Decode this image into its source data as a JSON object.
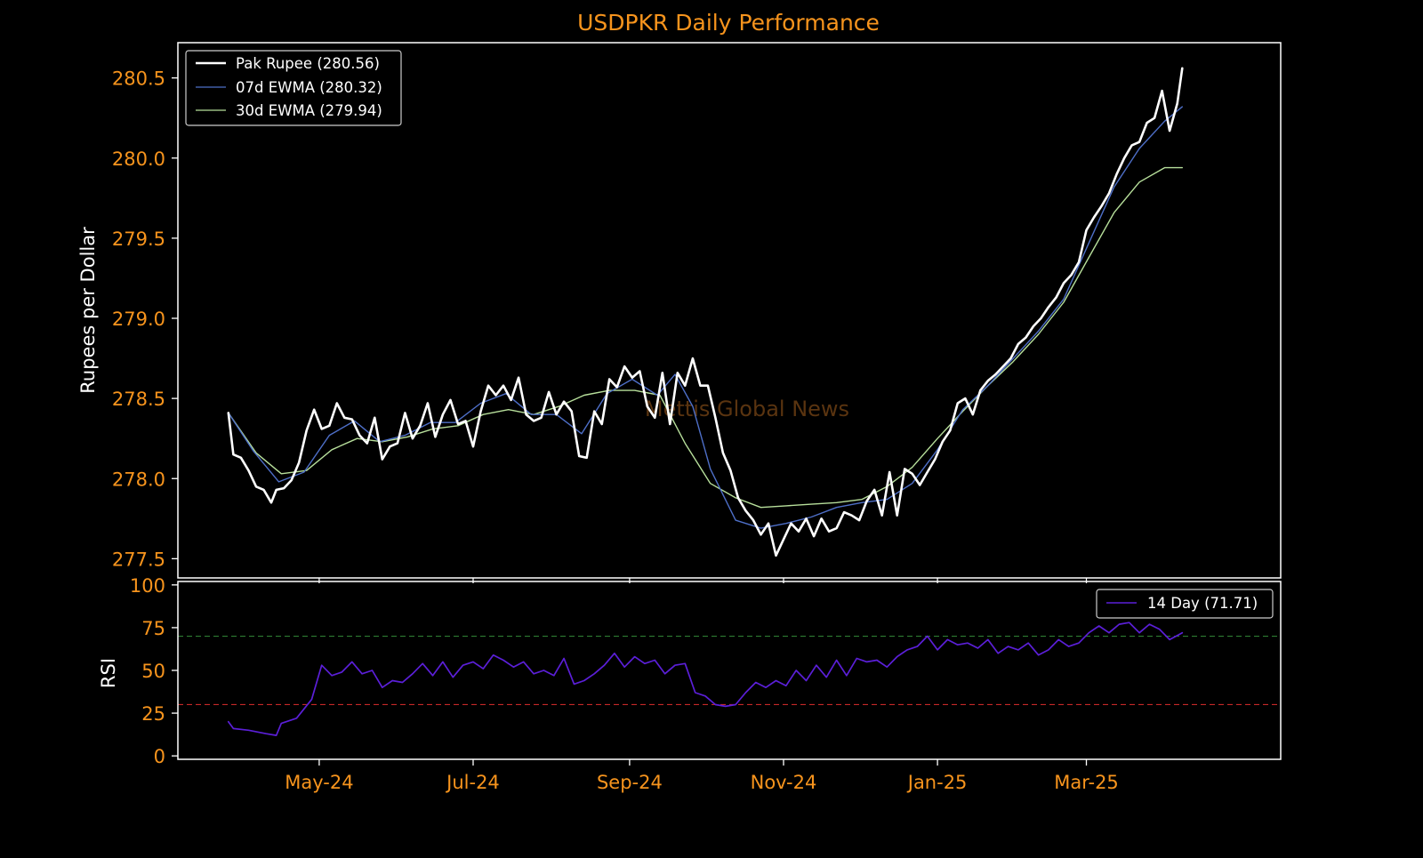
{
  "colors": {
    "background": "#000000",
    "accent": "#f7941d",
    "axes": "#ffffff",
    "price": "#ffffff",
    "ewma7": "#4e6fc8",
    "ewma30": "#b7df9b",
    "rsi": "#5b1fd8",
    "overbought": "#2e7d32",
    "oversold": "#c62828",
    "watermark": "#5a3410"
  },
  "watermark": "Mettis Global News",
  "chart_data": [
    {
      "type": "line",
      "title": "USDPKR Daily Performance",
      "ylabel": "Rupees per Dollar",
      "xlabel": "",
      "ylim": [
        277.38,
        280.72
      ],
      "yticks": [
        277.5,
        278.0,
        278.5,
        279.0,
        279.5,
        280.0,
        280.5
      ],
      "ytick_labels": [
        "277.5",
        "278.0",
        "278.5",
        "279.0",
        "279.5",
        "280.0",
        "280.5"
      ],
      "xlim": [
        "2024-03-06",
        "2025-05-17"
      ],
      "grid": false,
      "legend_position": "top-left",
      "legend": [
        "Pak Rupee (280.56)",
        "07d EWMA (280.32)",
        "30d EWMA (279.94)"
      ],
      "series": [
        {
          "name": "Pak Rupee (280.56)",
          "x": [
            "2024-03-26",
            "2024-03-28",
            "2024-03-31",
            "2024-04-03",
            "2024-04-06",
            "2024-04-09",
            "2024-04-12",
            "2024-04-14",
            "2024-04-17",
            "2024-04-20",
            "2024-04-23",
            "2024-04-26",
            "2024-04-29",
            "2024-05-02",
            "2024-05-05",
            "2024-05-08",
            "2024-05-11",
            "2024-05-14",
            "2024-05-17",
            "2024-05-20",
            "2024-05-23",
            "2024-05-26",
            "2024-05-29",
            "2024-06-01",
            "2024-06-04",
            "2024-06-07",
            "2024-06-10",
            "2024-06-13",
            "2024-06-16",
            "2024-06-19",
            "2024-06-22",
            "2024-06-25",
            "2024-06-28",
            "2024-07-01",
            "2024-07-04",
            "2024-07-07",
            "2024-07-10",
            "2024-07-13",
            "2024-07-16",
            "2024-07-19",
            "2024-07-22",
            "2024-07-25",
            "2024-07-28",
            "2024-07-31",
            "2024-08-03",
            "2024-08-06",
            "2024-08-09",
            "2024-08-12",
            "2024-08-15",
            "2024-08-18",
            "2024-08-21",
            "2024-08-24",
            "2024-08-27",
            "2024-08-30",
            "2024-09-02",
            "2024-09-05",
            "2024-09-08",
            "2024-09-11",
            "2024-09-14",
            "2024-09-17",
            "2024-09-20",
            "2024-09-23",
            "2024-09-26",
            "2024-09-29",
            "2024-10-02",
            "2024-10-05",
            "2024-10-08",
            "2024-10-11",
            "2024-10-14",
            "2024-10-17",
            "2024-10-20",
            "2024-10-23",
            "2024-10-26",
            "2024-10-29",
            "2024-11-01",
            "2024-11-04",
            "2024-11-07",
            "2024-11-10",
            "2024-11-13",
            "2024-11-16",
            "2024-11-19",
            "2024-11-22",
            "2024-11-25",
            "2024-11-28",
            "2024-12-01",
            "2024-12-04",
            "2024-12-07",
            "2024-12-10",
            "2024-12-13",
            "2024-12-16",
            "2024-12-19",
            "2024-12-22",
            "2024-12-25",
            "2024-12-28",
            "2024-12-31",
            "2025-01-03",
            "2025-01-06",
            "2025-01-09",
            "2025-01-12",
            "2025-01-15",
            "2025-01-18",
            "2025-01-21",
            "2025-01-24",
            "2025-01-27",
            "2025-01-30",
            "2025-02-02",
            "2025-02-05",
            "2025-02-08",
            "2025-02-11",
            "2025-02-14",
            "2025-02-17",
            "2025-02-20",
            "2025-02-23",
            "2025-02-26",
            "2025-03-01",
            "2025-03-04",
            "2025-03-07",
            "2025-03-10",
            "2025-03-13",
            "2025-03-16",
            "2025-03-19",
            "2025-03-22",
            "2025-03-25",
            "2025-03-28",
            "2025-03-31",
            "2025-04-03",
            "2025-04-06",
            "2025-04-08"
          ],
          "values": [
            278.41,
            278.15,
            278.13,
            278.05,
            277.95,
            277.93,
            277.85,
            277.93,
            277.94,
            277.99,
            278.1,
            278.3,
            278.43,
            278.31,
            278.33,
            278.47,
            278.38,
            278.37,
            278.27,
            278.22,
            278.38,
            278.12,
            278.2,
            278.22,
            278.41,
            278.25,
            278.33,
            278.47,
            278.26,
            278.4,
            278.49,
            278.34,
            278.36,
            278.2,
            278.42,
            278.58,
            278.52,
            278.58,
            278.49,
            278.63,
            278.4,
            278.36,
            278.38,
            278.54,
            278.4,
            278.48,
            278.42,
            278.14,
            278.13,
            278.42,
            278.34,
            278.62,
            278.57,
            278.7,
            278.63,
            278.67,
            278.45,
            278.38,
            278.66,
            278.34,
            278.66,
            278.58,
            278.75,
            278.58,
            278.58,
            278.38,
            278.16,
            278.05,
            277.88,
            277.8,
            277.74,
            277.65,
            277.72,
            277.52,
            277.62,
            277.72,
            277.67,
            277.75,
            277.64,
            277.75,
            277.67,
            277.69,
            277.79,
            277.77,
            277.74,
            277.86,
            277.93,
            277.77,
            278.04,
            277.77,
            278.06,
            278.03,
            277.96,
            278.04,
            278.12,
            278.23,
            278.3,
            278.47,
            278.5,
            278.4,
            278.55,
            278.61,
            278.65,
            278.7,
            278.75,
            278.84,
            278.88,
            278.95,
            279.0,
            279.07,
            279.13,
            279.22,
            279.27,
            279.35,
            279.55,
            279.63,
            279.7,
            279.78,
            279.9,
            280.0,
            280.08,
            280.1,
            280.22,
            280.25,
            280.42,
            280.17,
            280.34,
            280.56
          ]
        },
        {
          "name": "07d EWMA (280.32)",
          "x": [
            "2024-03-26",
            "2024-04-05",
            "2024-04-15",
            "2024-04-25",
            "2024-05-05",
            "2024-05-15",
            "2024-05-25",
            "2024-06-04",
            "2024-06-14",
            "2024-06-24",
            "2024-07-04",
            "2024-07-14",
            "2024-07-24",
            "2024-08-03",
            "2024-08-13",
            "2024-08-23",
            "2024-09-02",
            "2024-09-12",
            "2024-09-19",
            "2024-09-26",
            "2024-10-03",
            "2024-10-13",
            "2024-10-23",
            "2024-11-02",
            "2024-11-12",
            "2024-11-22",
            "2024-12-02",
            "2024-12-12",
            "2024-12-22",
            "2025-01-01",
            "2025-01-11",
            "2025-01-21",
            "2025-01-31",
            "2025-02-10",
            "2025-02-20",
            "2025-03-02",
            "2025-03-12",
            "2025-03-22",
            "2025-04-01",
            "2025-04-08"
          ],
          "values": [
            278.41,
            278.17,
            277.98,
            278.04,
            278.27,
            278.36,
            278.23,
            278.27,
            278.35,
            278.35,
            278.47,
            278.53,
            278.4,
            278.4,
            278.28,
            278.53,
            278.62,
            278.52,
            278.65,
            278.45,
            278.06,
            277.74,
            277.69,
            277.72,
            277.76,
            277.82,
            277.85,
            277.87,
            277.97,
            278.18,
            278.43,
            278.58,
            278.75,
            278.92,
            279.12,
            279.47,
            279.82,
            280.06,
            280.23,
            280.32
          ]
        },
        {
          "name": "30d EWMA (279.94)",
          "x": [
            "2024-03-26",
            "2024-04-06",
            "2024-04-16",
            "2024-04-26",
            "2024-05-06",
            "2024-05-16",
            "2024-05-26",
            "2024-06-05",
            "2024-06-15",
            "2024-06-25",
            "2024-07-05",
            "2024-07-15",
            "2024-07-25",
            "2024-08-04",
            "2024-08-14",
            "2024-08-24",
            "2024-09-03",
            "2024-09-13",
            "2024-09-23",
            "2024-10-03",
            "2024-10-13",
            "2024-10-23",
            "2024-11-02",
            "2024-11-12",
            "2024-11-22",
            "2024-12-02",
            "2024-12-12",
            "2024-12-22",
            "2025-01-01",
            "2025-01-11",
            "2025-01-21",
            "2025-01-31",
            "2025-02-10",
            "2025-02-20",
            "2025-03-02",
            "2025-03-12",
            "2025-03-22",
            "2025-04-01",
            "2025-04-08"
          ],
          "values": [
            278.41,
            278.16,
            278.03,
            278.05,
            278.18,
            278.25,
            278.23,
            278.26,
            278.31,
            278.33,
            278.4,
            278.43,
            278.4,
            278.45,
            278.52,
            278.55,
            278.55,
            278.52,
            278.22,
            277.97,
            277.88,
            277.82,
            277.83,
            277.84,
            277.85,
            277.87,
            277.95,
            278.07,
            278.25,
            278.42,
            278.58,
            278.73,
            278.9,
            279.1,
            279.38,
            279.66,
            279.85,
            279.94,
            279.94
          ]
        }
      ]
    },
    {
      "type": "line",
      "title": "",
      "ylabel": "RSI",
      "xlabel": "",
      "ylim": [
        -2,
        102
      ],
      "yticks": [
        0,
        25,
        50,
        75,
        100
      ],
      "ytick_labels": [
        "0",
        "25",
        "50",
        "75",
        "100"
      ],
      "xlim": [
        "2024-03-06",
        "2025-05-17"
      ],
      "xticks": [
        "2024-05-01",
        "2024-07-01",
        "2024-09-01",
        "2024-11-01",
        "2025-01-01",
        "2025-03-01"
      ],
      "xtick_labels": [
        "May-24",
        "Jul-24",
        "Sep-24",
        "Nov-24",
        "Jan-25",
        "Mar-25"
      ],
      "grid": false,
      "legend_position": "top-right",
      "legend": [
        "14 Day (71.71)"
      ],
      "reference_lines": [
        70,
        30
      ],
      "series": [
        {
          "name": "14 Day (71.71)",
          "x": [
            "2024-03-26",
            "2024-03-28",
            "2024-04-03",
            "2024-04-10",
            "2024-04-14",
            "2024-04-16",
            "2024-04-22",
            "2024-04-28",
            "2024-05-02",
            "2024-05-06",
            "2024-05-10",
            "2024-05-14",
            "2024-05-18",
            "2024-05-22",
            "2024-05-26",
            "2024-05-30",
            "2024-06-03",
            "2024-06-07",
            "2024-06-11",
            "2024-06-15",
            "2024-06-19",
            "2024-06-23",
            "2024-06-27",
            "2024-07-01",
            "2024-07-05",
            "2024-07-09",
            "2024-07-13",
            "2024-07-17",
            "2024-07-21",
            "2024-07-25",
            "2024-07-29",
            "2024-08-02",
            "2024-08-06",
            "2024-08-10",
            "2024-08-14",
            "2024-08-18",
            "2024-08-22",
            "2024-08-26",
            "2024-08-30",
            "2024-09-03",
            "2024-09-07",
            "2024-09-11",
            "2024-09-15",
            "2024-09-19",
            "2024-09-23",
            "2024-09-27",
            "2024-10-01",
            "2024-10-05",
            "2024-10-09",
            "2024-10-13",
            "2024-10-17",
            "2024-10-21",
            "2024-10-25",
            "2024-10-29",
            "2024-11-02",
            "2024-11-06",
            "2024-11-10",
            "2024-11-14",
            "2024-11-18",
            "2024-11-22",
            "2024-11-26",
            "2024-11-30",
            "2024-12-04",
            "2024-12-08",
            "2024-12-12",
            "2024-12-16",
            "2024-12-20",
            "2024-12-24",
            "2024-12-28",
            "2025-01-01",
            "2025-01-05",
            "2025-01-09",
            "2025-01-13",
            "2025-01-17",
            "2025-01-21",
            "2025-01-25",
            "2025-01-29",
            "2025-02-02",
            "2025-02-06",
            "2025-02-10",
            "2025-02-14",
            "2025-02-18",
            "2025-02-22",
            "2025-02-26",
            "2025-03-02",
            "2025-03-06",
            "2025-03-10",
            "2025-03-14",
            "2025-03-18",
            "2025-03-22",
            "2025-03-26",
            "2025-03-30",
            "2025-04-03",
            "2025-04-08"
          ],
          "values": [
            20,
            16,
            15,
            13,
            12,
            19,
            22,
            33,
            53,
            47,
            49,
            55,
            48,
            50,
            40,
            44,
            43,
            48,
            54,
            47,
            55,
            46,
            53,
            55,
            51,
            59,
            56,
            52,
            55,
            48,
            50,
            47,
            57,
            42,
            44,
            48,
            53,
            60,
            52,
            58,
            54,
            56,
            48,
            53,
            54,
            37,
            35,
            30,
            29,
            30,
            37,
            43,
            40,
            44,
            41,
            50,
            44,
            53,
            46,
            56,
            47,
            57,
            55,
            56,
            52,
            58,
            62,
            64,
            70,
            62,
            68,
            65,
            66,
            63,
            68,
            60,
            64,
            62,
            66,
            59,
            62,
            68,
            64,
            66,
            72,
            76,
            72,
            77,
            78,
            72,
            77,
            74,
            68,
            72
          ]
        }
      ]
    }
  ]
}
